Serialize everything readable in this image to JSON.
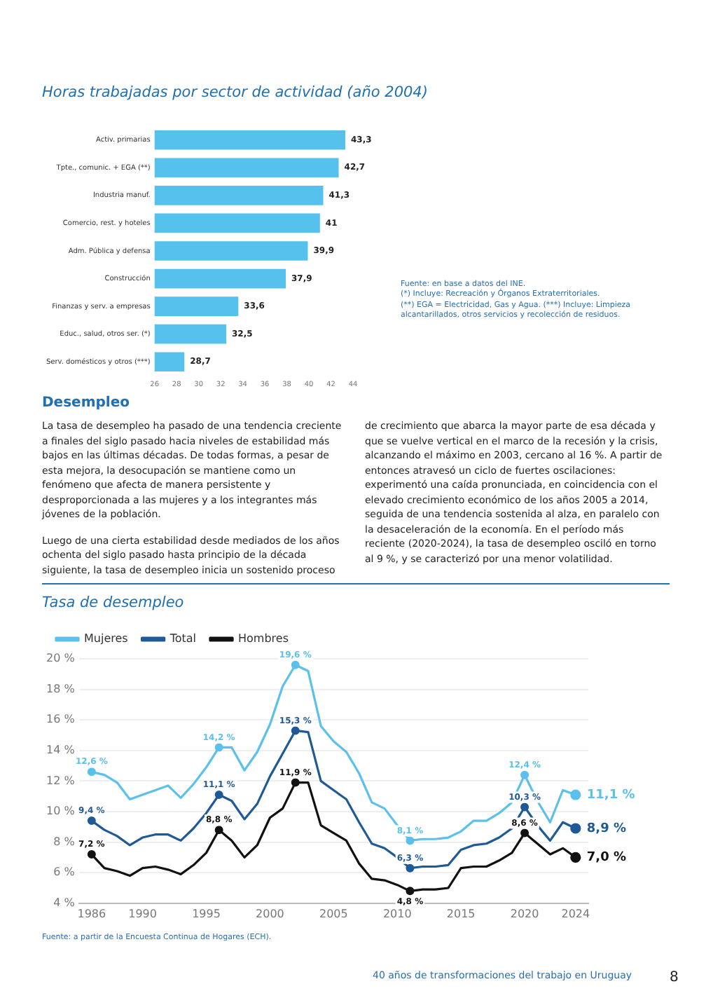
{
  "chart_data": [
    {
      "type": "bar",
      "orientation": "horizontal",
      "title": "Horas trabajadas por sector de actividad (año 2004)",
      "categories": [
        "Activ. primarias",
        "Tpte., comunic. + EGA (**)",
        "Industria manuf.",
        "Comercio, rest. y hoteles",
        "Adm. Pública y defensa",
        "Construcción",
        "Finanzas y serv. a empresas",
        "Educ., salud, otros ser. (*)",
        "Serv. domésticos y otros (***)"
      ],
      "values": [
        43.3,
        42.7,
        41.3,
        41,
        39.9,
        37.9,
        33.6,
        32.5,
        28.7
      ],
      "value_labels": [
        "43,3",
        "42,7",
        "41,3",
        "41",
        "39,9",
        "37,9",
        "33,6",
        "32,5",
        "28,7"
      ],
      "color": "#55c1ec",
      "xlim": [
        26,
        44
      ],
      "xticks": [
        26,
        28,
        30,
        32,
        34,
        36,
        38,
        40,
        42,
        44
      ],
      "grid": false,
      "legend": false,
      "annotations": [
        "Fuente: en base a datos del INE.",
        "(*) Incluye: Recreación y Órganos Extraterritoriales.",
        "(**) EGA = Electricidad, Gas y Agua. (***) Incluye: Limpieza alcantarillados, otros servicios y recolección de residuos."
      ]
    },
    {
      "type": "other",
      "title": "Desempleo",
      "annotations": [
        "La tasa de desempleo ha pasado de una tendencia creciente a finales del siglo pasado hacia niveles de estabilidad más bajos en las últimas décadas. De todas formas, a pesar de esta mejora, la desocupación se mantiene como un fenómeno que afecta de manera persistente y desproporcionada a las mujeres y a los integrantes más jóvenes de la población.",
        "Luego de una cierta estabilidad desde mediados de los años ochenta del siglo pasado hasta principio de la década siguiente, la tasa de desempleo inicia un sostenido proceso de crecimiento que abarca la mayor parte de esa década y que se vuelve vertical en el marco de la recesión y la crisis, alcanzando el máximo en 2003, cercano al 16 %. A partir de entonces atravesó un ciclo de fuertes oscilaciones: experimentó una caída pronunciada, en coincidencia con el elevado crecimiento económico de los años 2005 a 2014, seguida de una tendencia sostenida al alza, en paralelo con la desaceleración de la economía. En el período más reciente (2020-2024), la tasa de desempleo osciló en torno al 9 %, y se caracterizó por una menor volatilidad."
      ]
    },
    {
      "type": "line",
      "title": "Tasa de desempleo",
      "x": [
        1986,
        1987,
        1988,
        1989,
        1990,
        1991,
        1992,
        1993,
        1994,
        1995,
        1996,
        1997,
        1998,
        1999,
        2000,
        2001,
        2002,
        2003,
        2004,
        2005,
        2006,
        2007,
        2008,
        2009,
        2010,
        2011,
        2012,
        2013,
        2014,
        2015,
        2016,
        2017,
        2018,
        2019,
        2020,
        2021,
        2022,
        2023,
        2024
      ],
      "series": [
        {
          "name": "Mujeres",
          "color": "#5bc0eb",
          "values": [
            12.6,
            12.4,
            11.9,
            10.8,
            11.1,
            11.4,
            11.7,
            10.9,
            11.8,
            12.9,
            14.2,
            14.2,
            12.7,
            13.9,
            15.7,
            18.2,
            19.6,
            19.2,
            15.6,
            14.6,
            13.9,
            12.5,
            10.6,
            10.2,
            9.1,
            8.1,
            8.2,
            8.2,
            8.3,
            8.7,
            9.4,
            9.4,
            9.9,
            10.6,
            12.4,
            10.7,
            9.3,
            11.4,
            11.1
          ],
          "value_labels": [
            "12,6 %",
            null,
            null,
            null,
            null,
            null,
            null,
            null,
            null,
            null,
            "14,2 %",
            null,
            null,
            null,
            null,
            null,
            "19,6 %",
            null,
            null,
            null,
            null,
            null,
            null,
            null,
            null,
            "8,1 %",
            null,
            null,
            null,
            null,
            null,
            null,
            null,
            null,
            "12,4 %",
            null,
            null,
            null,
            "11,1 %"
          ]
        },
        {
          "name": "Total",
          "color": "#1f5a96",
          "values": [
            9.4,
            8.8,
            8.4,
            7.8,
            8.3,
            8.5,
            8.5,
            8.1,
            8.9,
            9.9,
            11.1,
            10.7,
            9.5,
            10.5,
            12.3,
            13.8,
            15.3,
            15.2,
            12.0,
            11.4,
            10.8,
            9.3,
            7.9,
            7.6,
            7.0,
            6.3,
            6.4,
            6.4,
            6.5,
            7.5,
            7.8,
            7.9,
            8.3,
            8.9,
            10.3,
            9.1,
            8.1,
            9.3,
            8.9
          ],
          "value_labels": [
            "9,4 %",
            null,
            null,
            null,
            null,
            null,
            null,
            null,
            null,
            null,
            "11,1 %",
            null,
            null,
            null,
            null,
            null,
            "15,3 %",
            null,
            null,
            null,
            null,
            null,
            null,
            null,
            null,
            "6,3 %",
            null,
            null,
            null,
            null,
            null,
            null,
            null,
            null,
            "10,3 %",
            null,
            null,
            null,
            "8,9 %"
          ]
        },
        {
          "name": "Hombres",
          "color": "#111111",
          "values": [
            7.2,
            6.3,
            6.1,
            5.8,
            6.3,
            6.4,
            6.2,
            5.9,
            6.5,
            7.3,
            8.8,
            8.1,
            7.0,
            7.8,
            9.6,
            10.2,
            11.9,
            11.9,
            9.1,
            8.6,
            8.1,
            6.6,
            5.6,
            5.5,
            5.2,
            4.8,
            4.9,
            4.9,
            5.0,
            6.3,
            6.4,
            6.4,
            6.8,
            7.3,
            8.6,
            7.9,
            7.2,
            7.6,
            7.0
          ],
          "value_labels": [
            "7,2 %",
            null,
            null,
            null,
            null,
            null,
            null,
            null,
            null,
            null,
            "8,8 %",
            null,
            null,
            null,
            null,
            null,
            "11,9 %",
            null,
            null,
            null,
            null,
            null,
            null,
            null,
            null,
            "4,8 %",
            null,
            null,
            null,
            null,
            null,
            null,
            null,
            null,
            "8,6 %",
            null,
            null,
            null,
            "7,0 %"
          ]
        }
      ],
      "xlim": [
        1985,
        2025
      ],
      "xticks": [
        1986,
        1990,
        1995,
        2000,
        2005,
        2010,
        2015,
        2020,
        2024
      ],
      "ylim": [
        4,
        20
      ],
      "yticks": [
        {
          "value": 4,
          "label": "4 %"
        },
        {
          "value": 6,
          "label": "6 %"
        },
        {
          "value": 8,
          "label": "8 %"
        },
        {
          "value": 10,
          "label": "10 %"
        },
        {
          "value": 12,
          "label": "12 %"
        },
        {
          "value": 14,
          "label": "14 %"
        },
        {
          "value": 16,
          "label": "16 %"
        },
        {
          "value": 18,
          "label": "18 %"
        },
        {
          "value": 20,
          "label": "20 %"
        }
      ],
      "grid": "y",
      "legend": "top left",
      "line_style": "solid",
      "annotations": [
        "Fuente: a partir de la Encuesta Continua de Hogares (ECH).",
        "40 años de transformaciones del trabajo en Uruguay",
        "8"
      ]
    }
  ]
}
